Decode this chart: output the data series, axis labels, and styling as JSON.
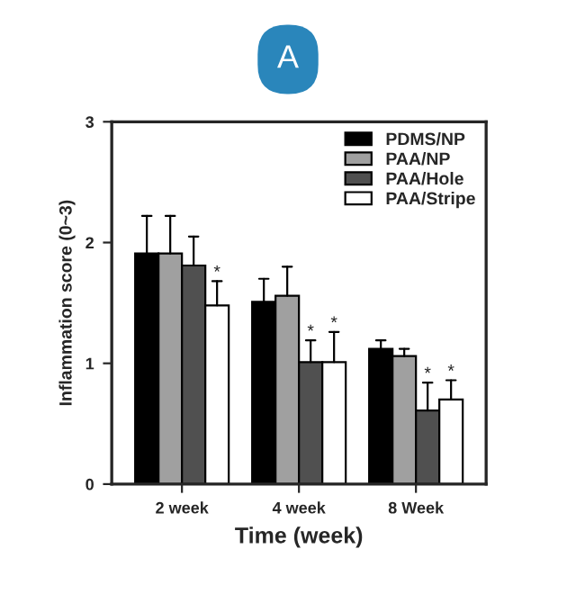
{
  "chart_data": {
    "type": "bar",
    "title": "A",
    "xlabel": "Time (week)",
    "ylabel": "Inflammation score (0~3)",
    "categories": [
      "2 week",
      "4 week",
      "8 Week"
    ],
    "series": [
      {
        "name": "PDMS/NP",
        "color": "#000000",
        "values": [
          1.91,
          1.51,
          1.12
        ],
        "errors": [
          [
            1.91,
            2.22
          ],
          [
            1.51,
            1.7
          ],
          [
            1.12,
            1.19
          ]
        ]
      },
      {
        "name": "PAA/NP",
        "color": "#a0a0a0",
        "values": [
          1.91,
          1.56,
          1.06
        ],
        "errors": [
          [
            1.91,
            2.22
          ],
          [
            1.56,
            1.8
          ],
          [
            1.06,
            1.12
          ]
        ]
      },
      {
        "name": "PAA/Hole",
        "color": "#505050",
        "values": [
          1.81,
          1.01,
          0.61
        ],
        "errors": [
          [
            1.81,
            2.05
          ],
          [
            1.01,
            1.19
          ],
          [
            0.61,
            0.84
          ]
        ]
      },
      {
        "name": "PAA/Stripe",
        "color": "#ffffff",
        "values": [
          1.48,
          1.01,
          0.7
        ],
        "errors": [
          [
            1.48,
            1.68
          ],
          [
            1.01,
            1.26
          ],
          [
            0.7,
            0.86
          ]
        ]
      }
    ],
    "annotations": [
      {
        "text": "*",
        "x": "2 week",
        "y": 1.68
      },
      {
        "text": "*",
        "x": "4 week",
        "y": 1.19
      },
      {
        "text": "*",
        "x": "4 week",
        "y": 1.26
      },
      {
        "text": "*",
        "x": "8 Week",
        "y": 0.84
      },
      {
        "text": "*",
        "x": "8 Week",
        "y": 0.86
      }
    ],
    "ylim": [
      0,
      3
    ],
    "yticks": [
      0,
      1,
      2,
      3
    ],
    "grid": false,
    "legend": "top right"
  }
}
